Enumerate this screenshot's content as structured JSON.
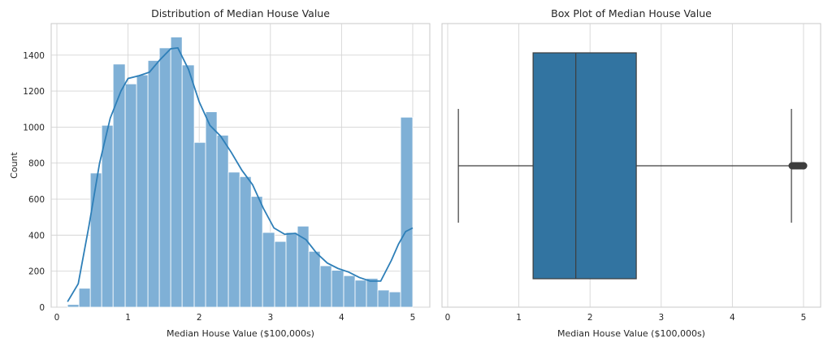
{
  "chart_data": [
    {
      "type": "histogram",
      "title": "Distribution of Median House Value",
      "xlabel": "Median House Value ($100,000s)",
      "ylabel": "Count",
      "xlim": [
        -0.08,
        5.24
      ],
      "ylim": [
        0,
        1575
      ],
      "xticks": [
        0,
        1,
        2,
        3,
        4,
        5
      ],
      "xtick_labels": [
        "0",
        "1",
        "2",
        "3",
        "4",
        "5"
      ],
      "yticks": [
        0,
        200,
        400,
        600,
        800,
        1000,
        1200,
        1400
      ],
      "ytick_labels": [
        "0",
        "200",
        "400",
        "600",
        "800",
        "1000",
        "1200",
        "1400"
      ],
      "grid": true,
      "bar_color": "#7fb0d6",
      "kde_color": "#2e7fb8",
      "bins": [
        0.15,
        0.31,
        0.47,
        0.63,
        0.79,
        0.96,
        1.12,
        1.28,
        1.44,
        1.6,
        1.76,
        1.93,
        2.09,
        2.25,
        2.41,
        2.57,
        2.73,
        2.89,
        3.06,
        3.22,
        3.38,
        3.54,
        3.7,
        3.86,
        4.03,
        4.19,
        4.35,
        4.51,
        4.67,
        4.83,
        5.0
      ],
      "counts": [
        15,
        105,
        745,
        1010,
        1350,
        1240,
        1290,
        1370,
        1440,
        1500,
        1345,
        915,
        1085,
        955,
        750,
        725,
        615,
        415,
        365,
        415,
        450,
        310,
        230,
        205,
        175,
        150,
        160,
        95,
        85,
        1055
      ],
      "kde": {
        "x": [
          0.15,
          0.3,
          0.45,
          0.6,
          0.75,
          0.9,
          1.0,
          1.15,
          1.3,
          1.45,
          1.6,
          1.7,
          1.85,
          2.0,
          2.15,
          2.3,
          2.45,
          2.6,
          2.75,
          2.9,
          3.05,
          3.2,
          3.35,
          3.5,
          3.65,
          3.8,
          3.95,
          4.1,
          4.25,
          4.4,
          4.55,
          4.7,
          4.8,
          4.9,
          5.0
        ],
        "y": [
          30,
          130,
          450,
          800,
          1050,
          1200,
          1270,
          1285,
          1305,
          1375,
          1435,
          1440,
          1320,
          1140,
          1010,
          950,
          860,
          760,
          680,
          550,
          440,
          405,
          410,
          375,
          300,
          245,
          215,
          195,
          165,
          145,
          145,
          260,
          350,
          420,
          440
        ]
      }
    },
    {
      "type": "box",
      "title": "Box Plot of Median House Value",
      "xlabel": "Median House Value ($100,000s)",
      "xlim": [
        -0.08,
        5.24
      ],
      "xticks": [
        0,
        1,
        2,
        3,
        4,
        5
      ],
      "xtick_labels": [
        "0",
        "1",
        "2",
        "3",
        "4",
        "5"
      ],
      "grid": true,
      "box_color": "#3274a1",
      "stats": {
        "whisker_low": 0.15,
        "q1": 1.2,
        "median": 1.8,
        "q3": 2.65,
        "whisker_high": 4.83
      },
      "outliers": [
        4.84,
        4.86,
        4.88,
        4.9,
        4.92,
        4.94,
        4.96,
        4.98,
        5.0,
        5.0
      ]
    }
  ]
}
